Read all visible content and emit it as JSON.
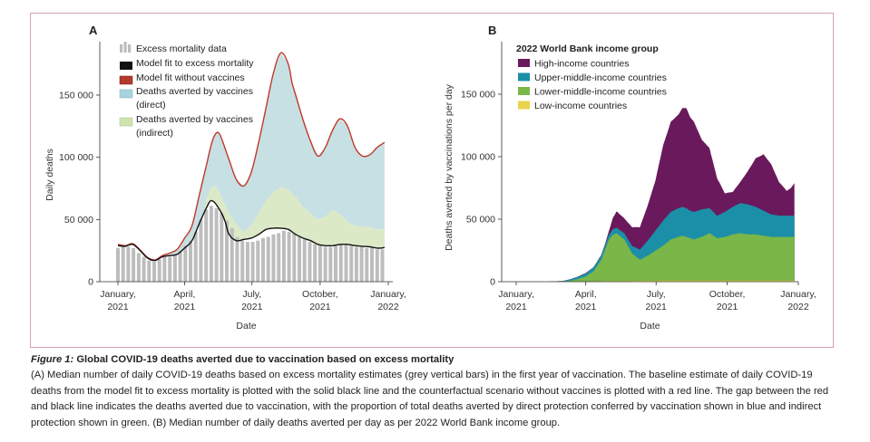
{
  "chart_data": [
    {
      "type": "area",
      "panel_label": "A",
      "ylabel": "Daily deaths",
      "xlabel": "Date",
      "ylim": [
        0,
        190000
      ],
      "yticks": [
        0,
        50000,
        100000,
        150000
      ],
      "ytick_labels": [
        "0",
        "50 000",
        "100 000",
        "150 000"
      ],
      "xtick_labels": [
        "January,\n2021",
        "April,\n2021",
        "July,\n2021",
        "October,\n2021",
        "January,\n2022"
      ],
      "xtick_days": [
        0,
        90,
        181,
        273,
        365
      ],
      "legend": [
        {
          "label": "Excess mortality data",
          "kind": "bars",
          "color": "#bdbdbd"
        },
        {
          "label": "Model fit to excess mortality",
          "kind": "line",
          "color": "#111111"
        },
        {
          "label": "Model fit without vaccines",
          "kind": "line",
          "color": "#c0392b"
        },
        {
          "label": "Deaths averted by vaccines\n(direct)",
          "kind": "patch",
          "color": "#c7e0e4"
        },
        {
          "label": "Deaths averted by vaccines\n(indirect)",
          "kind": "patch",
          "color": "#dce9c7"
        }
      ],
      "series": [
        {
          "name": "Model fit to excess mortality",
          "x_days": [
            0,
            10,
            20,
            30,
            40,
            50,
            60,
            70,
            80,
            90,
            100,
            110,
            120,
            125,
            130,
            135,
            140,
            145,
            150,
            160,
            170,
            180,
            190,
            200,
            210,
            220,
            230,
            240,
            250,
            260,
            270,
            280,
            290,
            300,
            310,
            320,
            330,
            340,
            350,
            355,
            360
          ],
          "y": [
            29000,
            28500,
            30000,
            25000,
            19000,
            17000,
            20000,
            21000,
            22000,
            27000,
            33000,
            47000,
            60000,
            65000,
            64000,
            60000,
            55000,
            48000,
            38000,
            33000,
            34000,
            35000,
            38000,
            42000,
            43000,
            43000,
            42000,
            38000,
            35000,
            33000,
            30000,
            29000,
            29000,
            30000,
            30000,
            29000,
            28500,
            28000,
            27000,
            27000,
            27500
          ]
        },
        {
          "name": "Model fit without vaccines",
          "x_days": [
            0,
            10,
            20,
            30,
            40,
            50,
            60,
            70,
            80,
            90,
            100,
            110,
            120,
            125,
            130,
            135,
            140,
            150,
            160,
            170,
            180,
            190,
            200,
            210,
            220,
            230,
            235,
            240,
            250,
            260,
            270,
            280,
            290,
            300,
            310,
            320,
            330,
            340,
            350,
            355,
            360
          ],
          "y": [
            30000,
            29000,
            30500,
            25500,
            19500,
            17500,
            21000,
            23000,
            26000,
            35000,
            45000,
            70000,
            95000,
            108000,
            117000,
            120000,
            115000,
            98000,
            82000,
            77000,
            88000,
            112000,
            140000,
            168000,
            184000,
            175000,
            160000,
            150000,
            130000,
            113000,
            101000,
            108000,
            122000,
            131000,
            125000,
            108000,
            101000,
            102000,
            108000,
            110000,
            112000
          ]
        },
        {
          "name": "Direct / indirect boundary",
          "x_days": [
            85,
            95,
            105,
            115,
            120,
            125,
            130,
            135,
            140,
            150,
            160,
            170,
            180,
            190,
            200,
            210,
            220,
            230,
            240,
            250,
            260,
            270,
            280,
            290,
            300,
            310,
            320,
            330,
            340,
            350,
            355,
            360
          ],
          "y": [
            22000,
            30000,
            40000,
            55000,
            67000,
            75000,
            77000,
            74000,
            68000,
            55000,
            46000,
            40000,
            45000,
            55000,
            65000,
            72000,
            76000,
            74000,
            68000,
            60000,
            55000,
            50000,
            52000,
            58000,
            54000,
            48000,
            45000,
            44000,
            44000,
            42000,
            42000,
            43000
          ]
        }
      ],
      "bars": {
        "name": "Excess mortality data",
        "x_days": [
          0,
          7,
          14,
          21,
          28,
          35,
          42,
          49,
          56,
          63,
          70,
          77,
          84,
          91,
          98,
          105,
          112,
          119,
          126,
          133,
          140,
          147,
          154,
          161,
          168,
          175,
          182,
          189,
          196,
          203,
          210,
          217,
          224,
          231,
          238,
          245,
          252,
          259,
          266,
          273,
          280,
          287,
          294,
          301,
          308,
          315,
          322,
          329,
          336,
          343,
          350,
          357
        ],
        "y": [
          27000,
          28000,
          28000,
          27000,
          23000,
          20000,
          17000,
          16000,
          18000,
          20000,
          20000,
          22000,
          25000,
          29000,
          33000,
          40000,
          50000,
          58000,
          61000,
          59000,
          55000,
          49000,
          43000,
          36000,
          33000,
          32000,
          32000,
          33000,
          35000,
          36000,
          38000,
          39000,
          41000,
          40000,
          39000,
          36000,
          34000,
          32000,
          30000,
          29000,
          28000,
          28000,
          29000,
          30000,
          30000,
          29000,
          28000,
          28000,
          27000,
          27000,
          26000,
          26000
        ]
      }
    },
    {
      "type": "area",
      "stacked": true,
      "panel_label": "B",
      "ylabel": "Deaths averted by vaccinations per day",
      "xlabel": "Date",
      "ylim": [
        0,
        170000
      ],
      "yticks": [
        0,
        50000,
        100000,
        150000
      ],
      "ytick_labels": [
        "0",
        "50 000",
        "100 000",
        "150 000"
      ],
      "xtick_labels": [
        "January,\n2021",
        "April,\n2021",
        "July,\n2021",
        "October,\n2021",
        "January,\n2022"
      ],
      "xtick_days": [
        0,
        90,
        181,
        273,
        365
      ],
      "legend_title": "2022 World Bank income group",
      "x_days": [
        0,
        20,
        40,
        60,
        70,
        80,
        90,
        100,
        110,
        115,
        120,
        125,
        130,
        140,
        150,
        160,
        170,
        180,
        190,
        200,
        210,
        215,
        220,
        225,
        230,
        240,
        250,
        260,
        270,
        280,
        290,
        300,
        310,
        320,
        330,
        340,
        350,
        355,
        360
      ],
      "series": [
        {
          "name": "Low-income countries",
          "color": "#e8d44d",
          "values": [
            0,
            0,
            0,
            0,
            0,
            100,
            200,
            300,
            400,
            500,
            600,
            600,
            600,
            600,
            600,
            700,
            700,
            700,
            800,
            800,
            800,
            800,
            800,
            800,
            800,
            800,
            800,
            800,
            800,
            800,
            800,
            800,
            800,
            800,
            800,
            800,
            800,
            800,
            800
          ]
        },
        {
          "name": "Lower-middle-income countries",
          "color": "#7ab648",
          "values": [
            0,
            0,
            0,
            200,
            800,
            2000,
            4000,
            8000,
            17000,
            25000,
            33000,
            37000,
            38000,
            33000,
            22000,
            17000,
            20000,
            24000,
            28000,
            33000,
            35000,
            36000,
            35000,
            34000,
            33000,
            35000,
            38000,
            34000,
            35000,
            37000,
            38000,
            37000,
            37000,
            36000,
            35000,
            35000,
            35000,
            35000,
            35000
          ]
        },
        {
          "name": "Upper-middle-income countries",
          "color": "#1c8fa8",
          "values": [
            0,
            0,
            0,
            300,
            1000,
            1800,
            2500,
            3000,
            3500,
            3800,
            4000,
            4200,
            4500,
            5000,
            6000,
            8000,
            12000,
            16000,
            20000,
            22000,
            23000,
            23000,
            23000,
            22000,
            22000,
            22000,
            20000,
            18000,
            20000,
            22000,
            24000,
            24000,
            22000,
            20000,
            18000,
            17000,
            17000,
            17000,
            17000
          ]
        },
        {
          "name": "High-income countries",
          "color": "#6a1a5c",
          "values": [
            0,
            0,
            0,
            100,
            200,
            200,
            300,
            300,
            500,
            1000,
            3000,
            9000,
            13000,
            12000,
            15000,
            18000,
            28000,
            40000,
            60000,
            72000,
            75000,
            79000,
            80000,
            75000,
            72000,
            56000,
            48000,
            30000,
            15000,
            12000,
            17000,
            27000,
            39000,
            45000,
            40000,
            27000,
            20000,
            22000,
            26000
          ]
        }
      ]
    }
  ],
  "panel_a_label": "A",
  "panel_b_label": "B",
  "caption": {
    "figure_label": "Figure 1:",
    "title": " Global COVID-19 deaths averted due to vaccination based on excess mortality",
    "body": "(A) Median number of daily COVID-19 deaths based on excess mortality estimates (grey vertical bars) in the first year of vaccination. The baseline estimate of daily COVID-19 deaths from the model fit to excess mortality is plotted with the solid black line and the counterfactual scenario without vaccines is plotted with a red line. The gap between the red and black line indicates the deaths averted due to vaccination, with the proportion of total deaths averted by direct protection conferred by vaccination shown in blue and indirect protection shown in green. (B) Median number of daily deaths averted per day as per 2022 World Bank income group."
  }
}
